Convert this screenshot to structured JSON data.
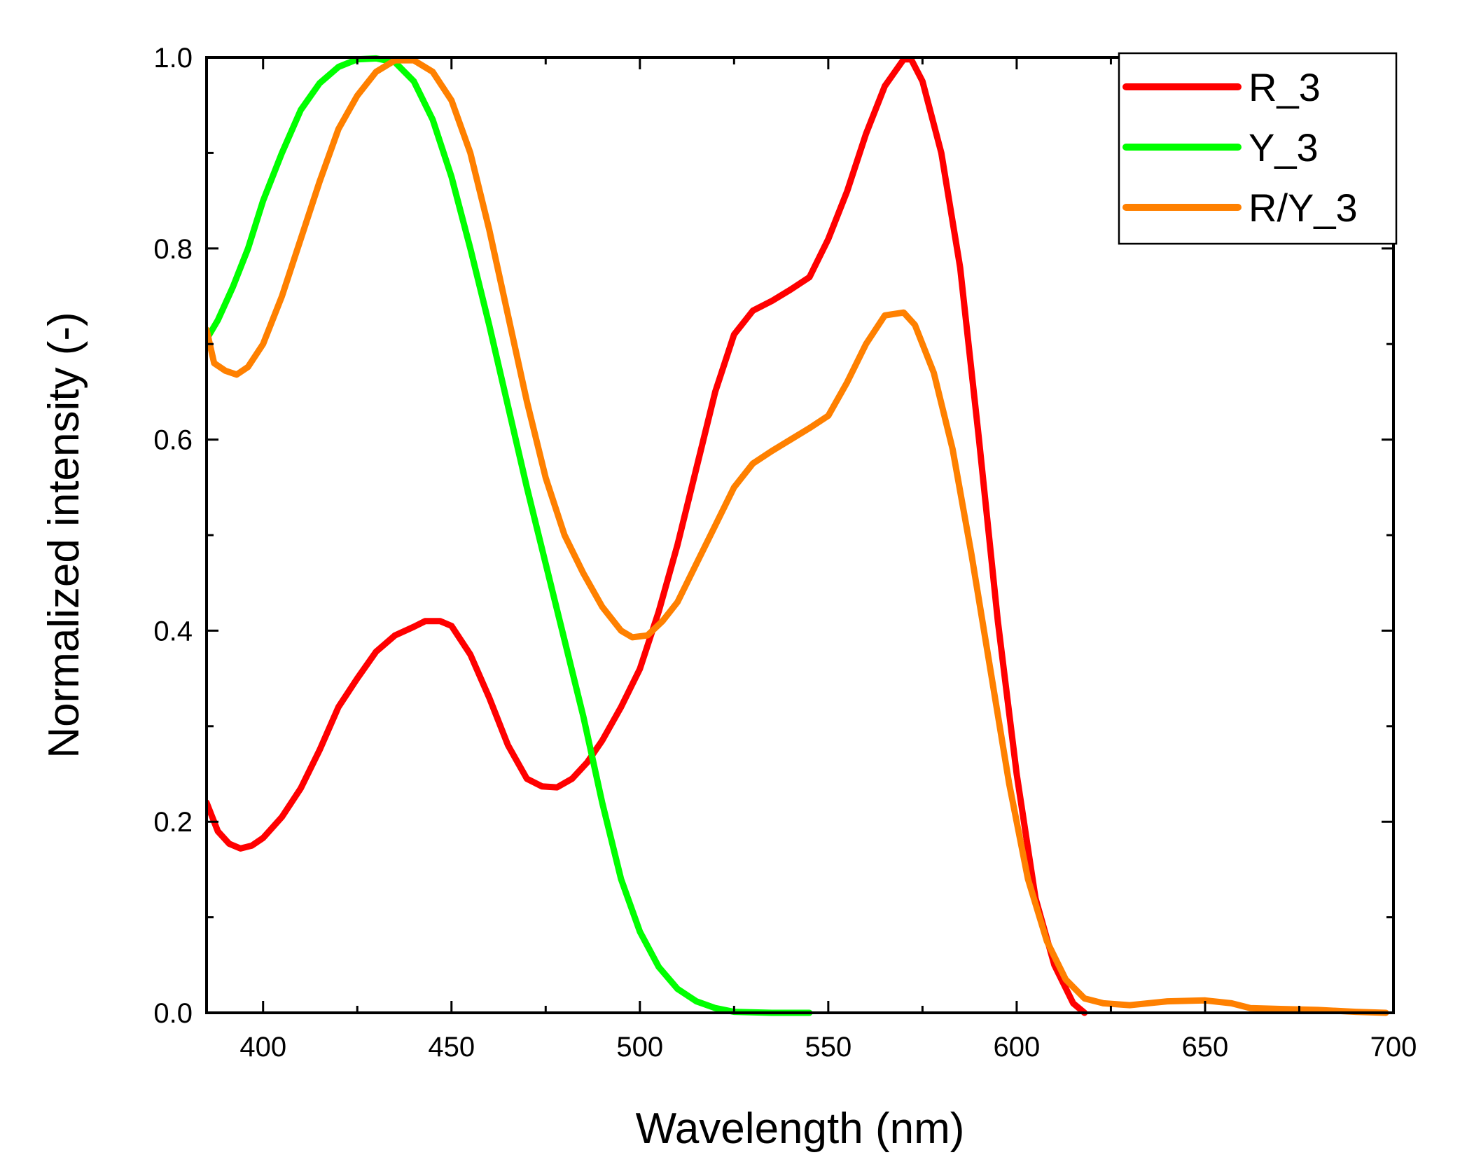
{
  "chart_data": {
    "type": "line",
    "xlabel": "Wavelength (nm)",
    "ylabel": "Normalized intensity (-)",
    "xlim": [
      385,
      700
    ],
    "ylim": [
      0,
      1.0
    ],
    "xticks": [
      400,
      450,
      500,
      550,
      600,
      650,
      700
    ],
    "yticks": [
      0.0,
      0.2,
      0.4,
      0.6,
      0.8,
      1.0
    ],
    "xtick_labels": [
      "400",
      "450",
      "500",
      "550",
      "600",
      "650",
      "700"
    ],
    "ytick_labels": [
      "0.0",
      "0.2",
      "0.4",
      "0.6",
      "0.8",
      "1.0"
    ],
    "grid": false,
    "legend_position": "top-right",
    "series": [
      {
        "name": "R_3",
        "color": "#ff0000",
        "points": [
          [
            385,
            0.22
          ],
          [
            388,
            0.19
          ],
          [
            391,
            0.177
          ],
          [
            394,
            0.172
          ],
          [
            397,
            0.175
          ],
          [
            400,
            0.183
          ],
          [
            405,
            0.205
          ],
          [
            410,
            0.235
          ],
          [
            415,
            0.275
          ],
          [
            420,
            0.32
          ],
          [
            425,
            0.35
          ],
          [
            430,
            0.378
          ],
          [
            435,
            0.395
          ],
          [
            440,
            0.404
          ],
          [
            443,
            0.41
          ],
          [
            447,
            0.41
          ],
          [
            450,
            0.405
          ],
          [
            455,
            0.375
          ],
          [
            460,
            0.33
          ],
          [
            465,
            0.28
          ],
          [
            470,
            0.245
          ],
          [
            474,
            0.237
          ],
          [
            478,
            0.236
          ],
          [
            482,
            0.245
          ],
          [
            486,
            0.262
          ],
          [
            490,
            0.285
          ],
          [
            495,
            0.32
          ],
          [
            500,
            0.36
          ],
          [
            505,
            0.42
          ],
          [
            510,
            0.49
          ],
          [
            515,
            0.57
          ],
          [
            520,
            0.65
          ],
          [
            525,
            0.71
          ],
          [
            530,
            0.735
          ],
          [
            535,
            0.745
          ],
          [
            540,
            0.757
          ],
          [
            545,
            0.77
          ],
          [
            550,
            0.81
          ],
          [
            555,
            0.86
          ],
          [
            560,
            0.92
          ],
          [
            565,
            0.97
          ],
          [
            570,
            0.998
          ],
          [
            572,
            0.998
          ],
          [
            575,
            0.975
          ],
          [
            580,
            0.9
          ],
          [
            585,
            0.78
          ],
          [
            590,
            0.6
          ],
          [
            595,
            0.41
          ],
          [
            600,
            0.25
          ],
          [
            605,
            0.12
          ],
          [
            610,
            0.05
          ],
          [
            615,
            0.01
          ],
          [
            618,
            0.0
          ]
        ]
      },
      {
        "name": "Y_3",
        "color": "#00ff00",
        "points": [
          [
            385,
            0.705
          ],
          [
            388,
            0.725
          ],
          [
            392,
            0.76
          ],
          [
            396,
            0.8
          ],
          [
            400,
            0.85
          ],
          [
            405,
            0.9
          ],
          [
            410,
            0.945
          ],
          [
            415,
            0.973
          ],
          [
            420,
            0.99
          ],
          [
            425,
            0.998
          ],
          [
            430,
            0.999
          ],
          [
            435,
            0.995
          ],
          [
            440,
            0.975
          ],
          [
            445,
            0.935
          ],
          [
            450,
            0.875
          ],
          [
            455,
            0.8
          ],
          [
            460,
            0.72
          ],
          [
            465,
            0.635
          ],
          [
            470,
            0.55
          ],
          [
            475,
            0.47
          ],
          [
            480,
            0.39
          ],
          [
            485,
            0.31
          ],
          [
            490,
            0.22
          ],
          [
            495,
            0.14
          ],
          [
            500,
            0.085
          ],
          [
            505,
            0.048
          ],
          [
            510,
            0.025
          ],
          [
            515,
            0.012
          ],
          [
            520,
            0.005
          ],
          [
            525,
            0.001
          ],
          [
            535,
            0.0
          ],
          [
            545,
            0.0
          ]
        ]
      },
      {
        "name": "R/Y_3",
        "color": "#ff8000",
        "points": [
          [
            385,
            0.715
          ],
          [
            387,
            0.68
          ],
          [
            390,
            0.672
          ],
          [
            393,
            0.668
          ],
          [
            396,
            0.676
          ],
          [
            400,
            0.7
          ],
          [
            405,
            0.75
          ],
          [
            410,
            0.81
          ],
          [
            415,
            0.87
          ],
          [
            420,
            0.925
          ],
          [
            425,
            0.96
          ],
          [
            430,
            0.985
          ],
          [
            435,
            0.997
          ],
          [
            440,
            0.997
          ],
          [
            445,
            0.985
          ],
          [
            450,
            0.955
          ],
          [
            455,
            0.9
          ],
          [
            460,
            0.82
          ],
          [
            465,
            0.73
          ],
          [
            470,
            0.64
          ],
          [
            475,
            0.56
          ],
          [
            480,
            0.5
          ],
          [
            485,
            0.46
          ],
          [
            490,
            0.425
          ],
          [
            495,
            0.4
          ],
          [
            498,
            0.393
          ],
          [
            502,
            0.395
          ],
          [
            506,
            0.41
          ],
          [
            510,
            0.43
          ],
          [
            515,
            0.47
          ],
          [
            520,
            0.51
          ],
          [
            525,
            0.55
          ],
          [
            530,
            0.575
          ],
          [
            535,
            0.588
          ],
          [
            540,
            0.6
          ],
          [
            545,
            0.612
          ],
          [
            550,
            0.625
          ],
          [
            555,
            0.66
          ],
          [
            560,
            0.7
          ],
          [
            565,
            0.73
          ],
          [
            570,
            0.733
          ],
          [
            573,
            0.72
          ],
          [
            578,
            0.67
          ],
          [
            583,
            0.59
          ],
          [
            588,
            0.48
          ],
          [
            593,
            0.36
          ],
          [
            598,
            0.24
          ],
          [
            603,
            0.14
          ],
          [
            608,
            0.075
          ],
          [
            613,
            0.035
          ],
          [
            618,
            0.015
          ],
          [
            623,
            0.01
          ],
          [
            630,
            0.008
          ],
          [
            640,
            0.012
          ],
          [
            650,
            0.013
          ],
          [
            657,
            0.01
          ],
          [
            662,
            0.005
          ],
          [
            670,
            0.004
          ],
          [
            680,
            0.003
          ],
          [
            690,
            0.001
          ],
          [
            698,
            0.0
          ]
        ]
      }
    ]
  }
}
